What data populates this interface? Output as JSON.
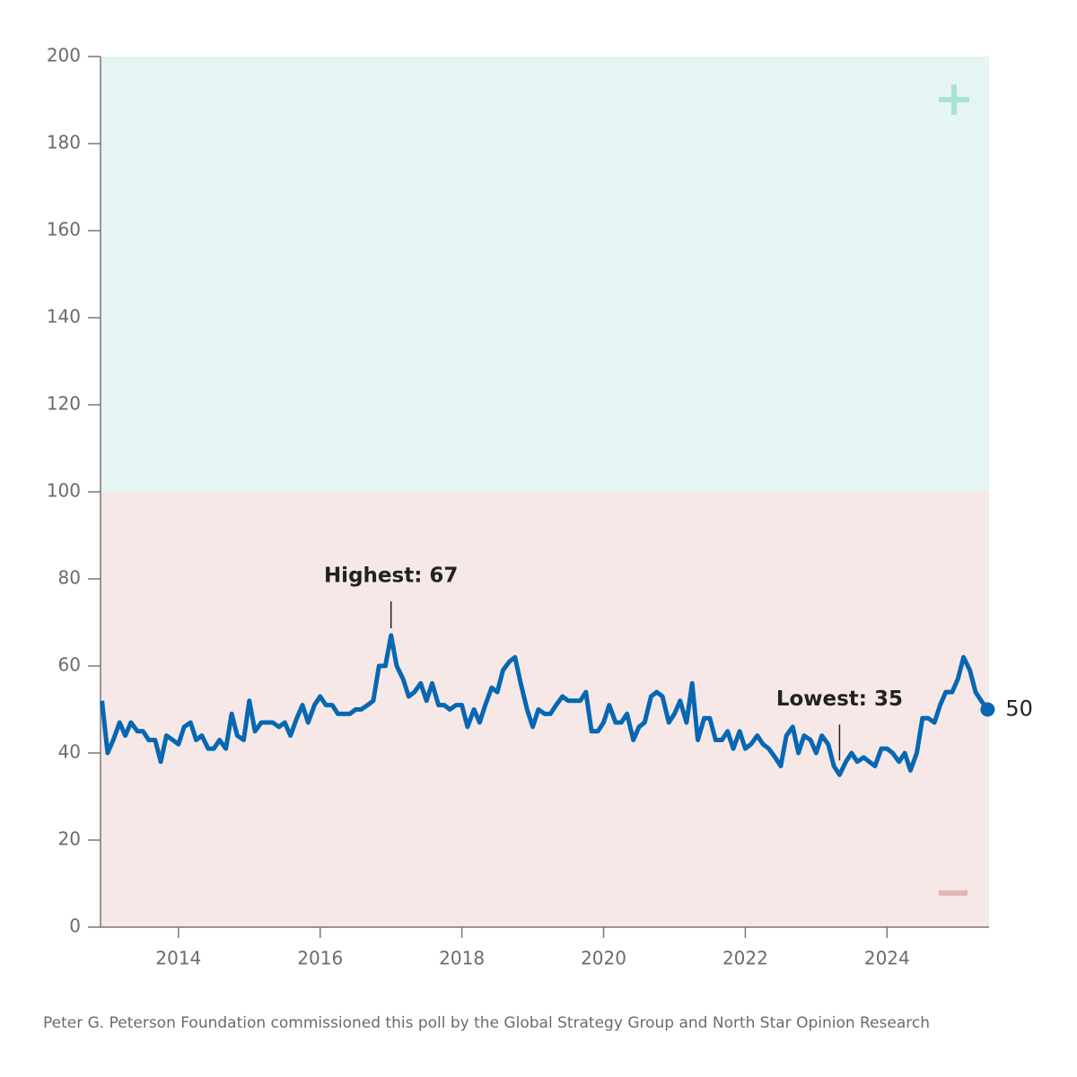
{
  "chart_data": {
    "type": "line",
    "x": [
      2012.92,
      2013.0,
      2013.08,
      2013.17,
      2013.25,
      2013.33,
      2013.42,
      2013.5,
      2013.58,
      2013.67,
      2013.75,
      2013.83,
      2013.92,
      2014.0,
      2014.08,
      2014.17,
      2014.25,
      2014.33,
      2014.42,
      2014.5,
      2014.58,
      2014.67,
      2014.75,
      2014.83,
      2014.92,
      2015.0,
      2015.08,
      2015.17,
      2015.25,
      2015.33,
      2015.42,
      2015.5,
      2015.58,
      2015.67,
      2015.75,
      2015.83,
      2015.92,
      2016.0,
      2016.08,
      2016.17,
      2016.25,
      2016.33,
      2016.42,
      2016.5,
      2016.58,
      2016.67,
      2016.75,
      2016.83,
      2016.92,
      2017.0,
      2017.08,
      2017.17,
      2017.25,
      2017.33,
      2017.42,
      2017.5,
      2017.58,
      2017.67,
      2017.75,
      2017.83,
      2017.92,
      2018.0,
      2018.08,
      2018.17,
      2018.25,
      2018.33,
      2018.42,
      2018.5,
      2018.58,
      2018.67,
      2018.75,
      2018.83,
      2018.92,
      2019.0,
      2019.08,
      2019.17,
      2019.25,
      2019.33,
      2019.42,
      2019.5,
      2019.58,
      2019.67,
      2019.75,
      2019.83,
      2019.92,
      2020.0,
      2020.08,
      2020.17,
      2020.25,
      2020.33,
      2020.42,
      2020.5,
      2020.58,
      2020.67,
      2020.75,
      2020.83,
      2020.92,
      2021.0,
      2021.08,
      2021.17,
      2021.25,
      2021.33,
      2021.42,
      2021.5,
      2021.58,
      2021.67,
      2021.75,
      2021.83,
      2021.92,
      2022.0,
      2022.08,
      2022.17,
      2022.25,
      2022.33,
      2022.42,
      2022.5,
      2022.58,
      2022.67,
      2022.75,
      2022.83,
      2022.92,
      2023.0,
      2023.08,
      2023.17,
      2023.25,
      2023.33,
      2023.42,
      2023.5,
      2023.58,
      2023.67,
      2023.75,
      2023.83,
      2023.92,
      2024.0,
      2024.08,
      2024.17,
      2024.25,
      2024.33,
      2024.42,
      2024.5,
      2024.58,
      2024.67,
      2024.75,
      2024.83,
      2024.92,
      2025.0,
      2025.08,
      2025.17,
      2025.25,
      2025.33,
      2025.42
    ],
    "series": [
      {
        "color": "#0767b2",
        "values": [
          52,
          40,
          43,
          47,
          44,
          47,
          45,
          45,
          43,
          43,
          38,
          44,
          43,
          42,
          46,
          47,
          43,
          44,
          41,
          41,
          43,
          41,
          49,
          44,
          43,
          52,
          45,
          47,
          47,
          47,
          46,
          47,
          44,
          48,
          51,
          47,
          51,
          53,
          51,
          51,
          49,
          49,
          49,
          50,
          50,
          51,
          52,
          60,
          60,
          67,
          60,
          57,
          53,
          54,
          56,
          52,
          56,
          51,
          51,
          50,
          51,
          51,
          46,
          50,
          47,
          51,
          55,
          54,
          59,
          61,
          62,
          56,
          50,
          46,
          50,
          49,
          49,
          51,
          53,
          52,
          52,
          52,
          54,
          45,
          45,
          47,
          51,
          47,
          47,
          49,
          43,
          46,
          47,
          53,
          54,
          53,
          47,
          49,
          52,
          47,
          56,
          43,
          48,
          48,
          43,
          43,
          45,
          41,
          45,
          41,
          42,
          44,
          42,
          41,
          39,
          37,
          44,
          46,
          40,
          44,
          43,
          40,
          44,
          42,
          37,
          35,
          38,
          40,
          38,
          39,
          38,
          37,
          41,
          41,
          40,
          38,
          40,
          36,
          40,
          48,
          48,
          47,
          51,
          54,
          54,
          57,
          62,
          59,
          54,
          52,
          50
        ]
      }
    ],
    "annotations": [
      "Highest: 67",
      "Lowest: 35"
    ],
    "xlim": [
      2012.9,
      2025.44
    ],
    "xticks": [
      2014,
      2016,
      2018,
      2020,
      2022,
      2024
    ],
    "ylim": [
      0,
      200
    ],
    "yticks": [
      0,
      20,
      40,
      60,
      80,
      100,
      120,
      140,
      160,
      180,
      200
    ],
    "source": "Peter G. Peterson Foundation commissioned this poll by the Global Strategy Group and North Star Opinion Research"
  }
}
